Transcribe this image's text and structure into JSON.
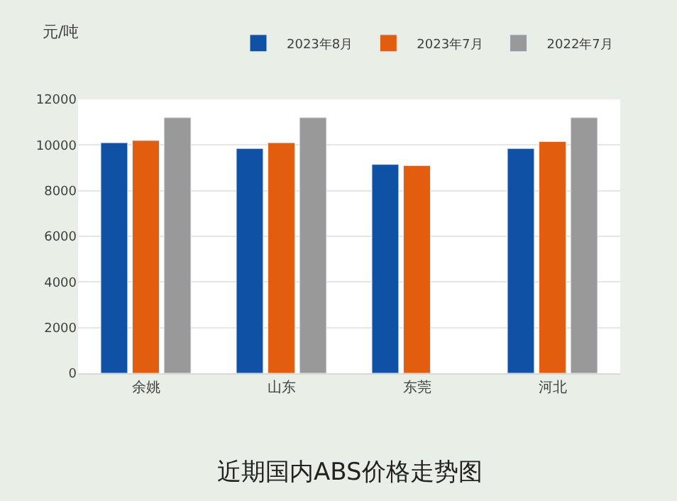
{
  "chart_data": {
    "type": "bar",
    "title": "近期国内ABS价格走势图",
    "ylabel": "元/吨",
    "categories": [
      "余姚",
      "山东",
      "东莞",
      "河北"
    ],
    "series": [
      {
        "name": "2023年8月",
        "color": "#0f52a5",
        "values": [
          10100,
          9850,
          9150,
          9850
        ]
      },
      {
        "name": "2023年7月",
        "color": "#e35d0e",
        "values": [
          10200,
          10100,
          9100,
          10150
        ]
      },
      {
        "name": "2022年7月",
        "color": "#999999",
        "values": [
          11200,
          11200,
          null,
          11200
        ]
      }
    ],
    "ylim": [
      0,
      12000
    ],
    "yticks": [
      0,
      2000,
      4000,
      6000,
      8000,
      10000,
      12000
    ],
    "grid": "y",
    "legend": "top right"
  }
}
